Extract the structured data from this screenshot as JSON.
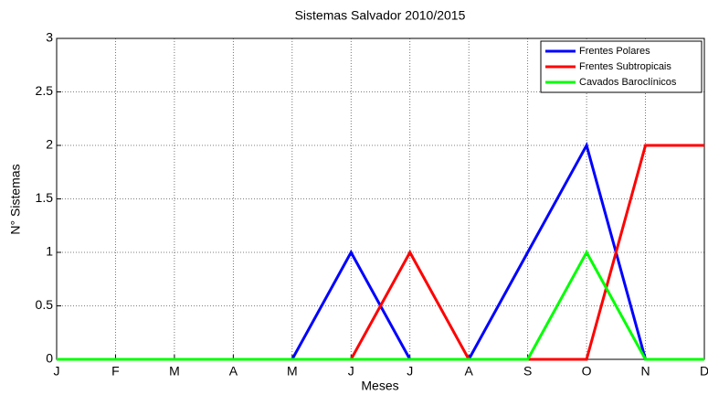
{
  "chart_data": {
    "type": "line",
    "title": "Sistemas Salvador 2010/2015",
    "xlabel": "Meses",
    "ylabel": "N° Sistemas",
    "categories": [
      "J",
      "F",
      "M",
      "A",
      "M",
      "J",
      "J",
      "A",
      "S",
      "O",
      "N",
      "D"
    ],
    "series": [
      {
        "name": "Frentes Polares",
        "color": "#0000ff",
        "values": [
          0,
          0,
          0,
          0,
          0,
          1,
          0,
          0,
          1,
          2,
          0,
          0
        ]
      },
      {
        "name": "Frentes Subtropicais",
        "color": "#ff0000",
        "values": [
          0,
          0,
          0,
          0,
          0,
          0,
          1,
          0,
          0,
          0,
          2,
          2
        ]
      },
      {
        "name": "Cavados Baroclínicos",
        "color": "#00ff00",
        "values": [
          0,
          0,
          0,
          0,
          0,
          0,
          0,
          0,
          0,
          1,
          0,
          0
        ]
      }
    ],
    "ylim": [
      0,
      3
    ],
    "yticks": [
      0,
      0.5,
      1,
      1.5,
      2,
      2.5,
      3
    ],
    "grid": true,
    "legend": "northeast"
  }
}
